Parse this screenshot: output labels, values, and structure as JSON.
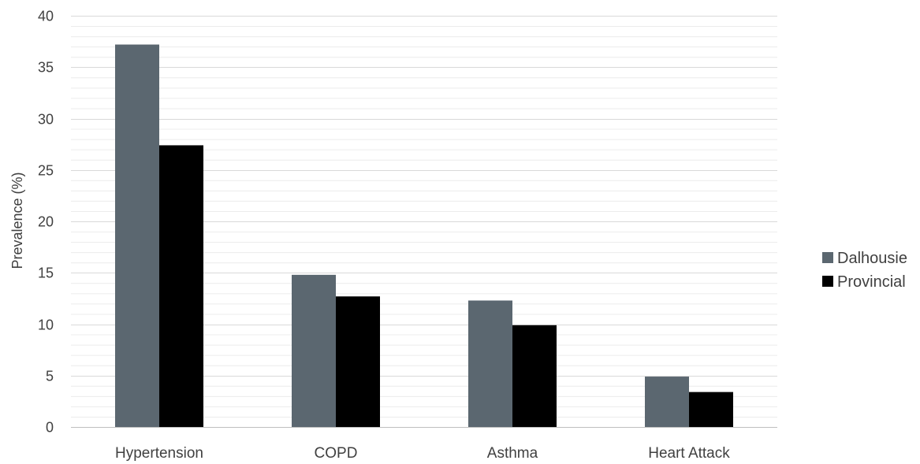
{
  "chart_data": {
    "type": "bar",
    "title": "",
    "xlabel": "",
    "ylabel": "Prevalence (%)",
    "ylim": [
      0,
      40
    ],
    "yticks": [
      0,
      5,
      10,
      15,
      20,
      25,
      30,
      35,
      40
    ],
    "grid": true,
    "minor_grid": true,
    "legend_position": "right",
    "categories": [
      "Hypertension",
      "COPD",
      "Asthma",
      "Heart Attack"
    ],
    "series": [
      {
        "name": "Dalhousie",
        "color": "#5b6770",
        "values": [
          37.2,
          14.8,
          12.3,
          4.9
        ]
      },
      {
        "name": "Provincial",
        "color": "#000000",
        "values": [
          27.4,
          12.7,
          9.9,
          3.4
        ]
      }
    ]
  }
}
